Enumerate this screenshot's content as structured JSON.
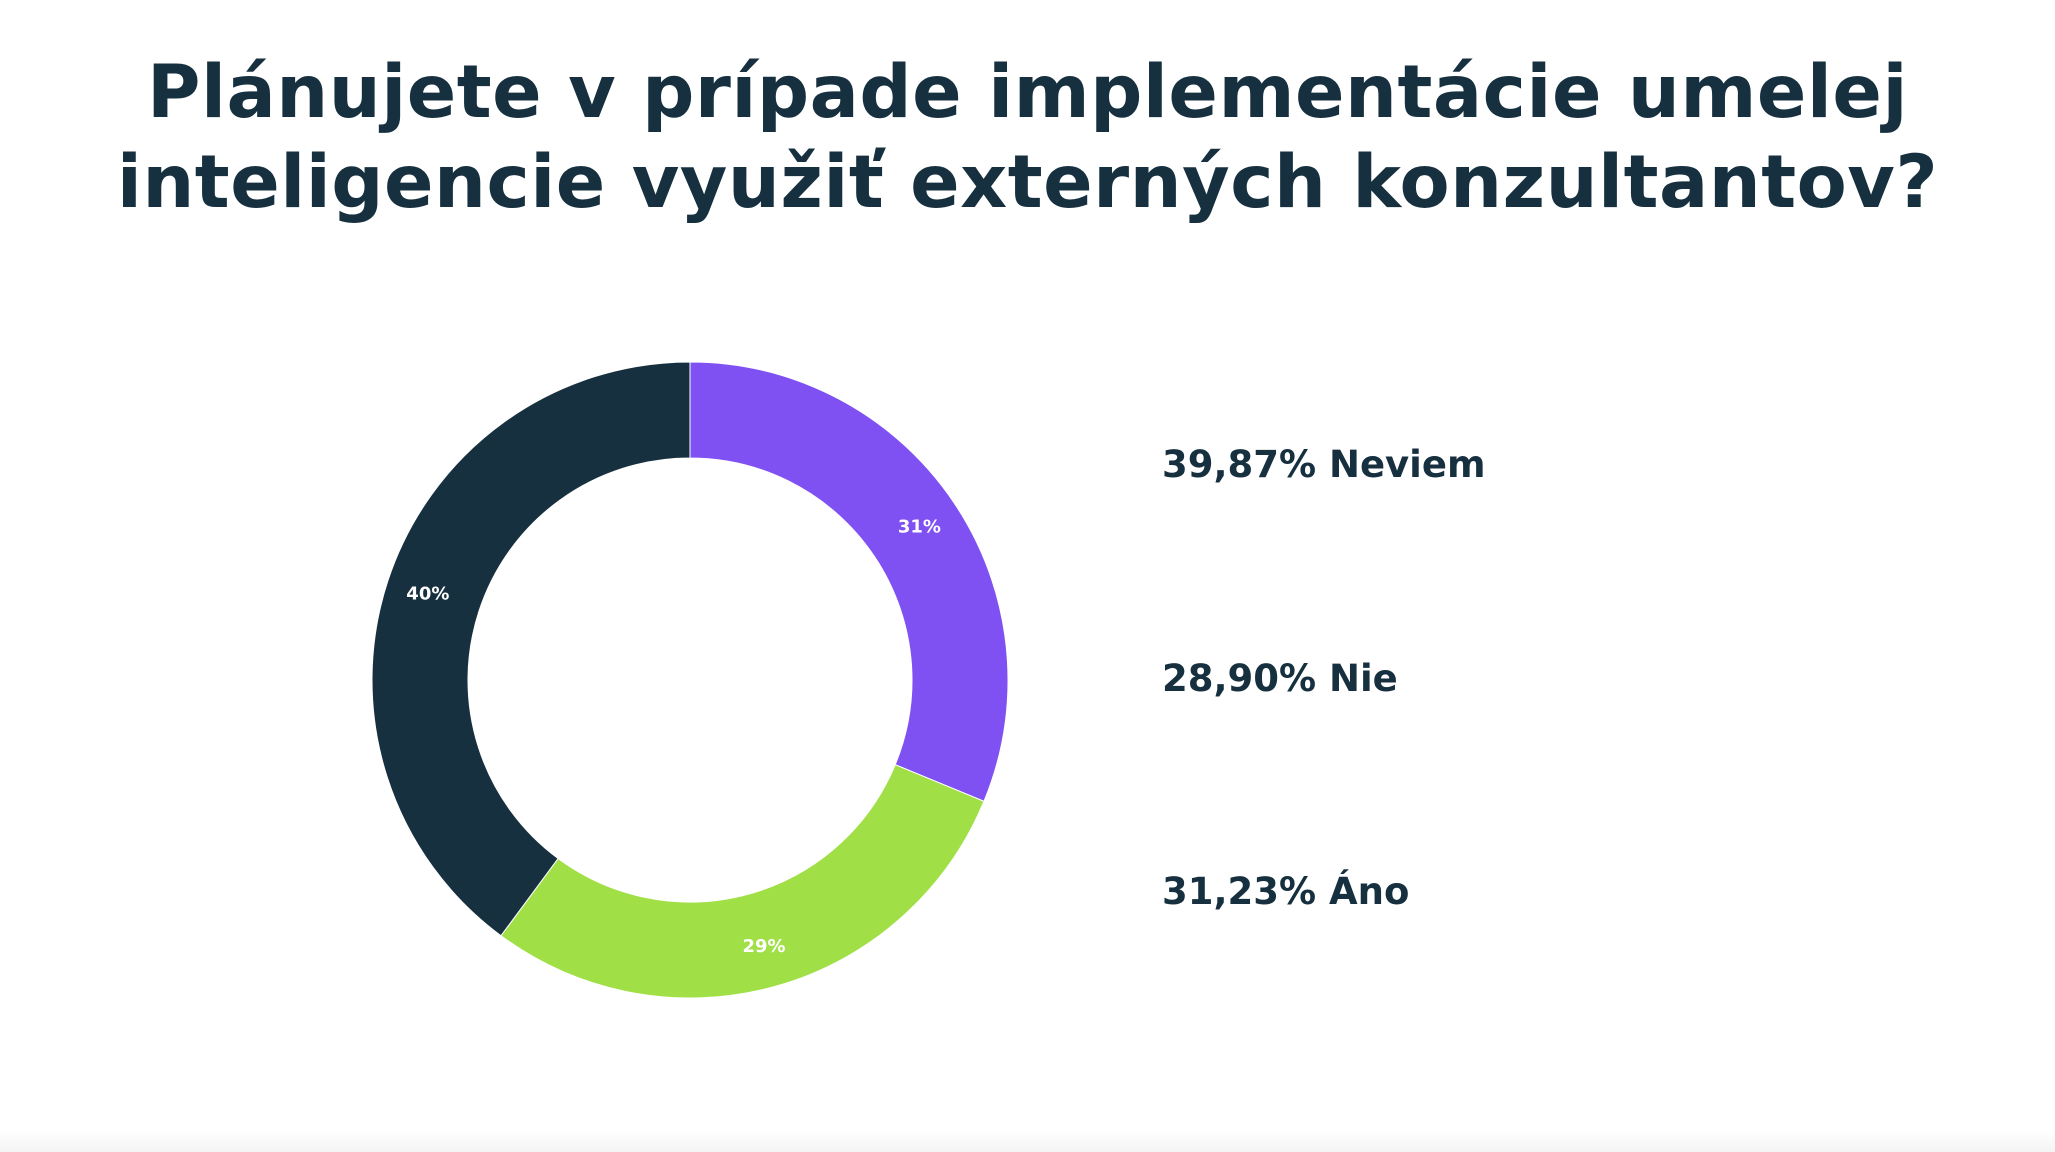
{
  "chart_data": {
    "type": "pie",
    "style": "donut",
    "title": "Plánujete v prípade implementácie umelej inteligencie využiť externých konzultantov?",
    "title_lines": [
      "Plánujete v prípade implementácie umelej",
      "inteligencie využiť externých konzultantov?"
    ],
    "slices": [
      {
        "name": "Áno",
        "value": 31.23,
        "label": "31%",
        "color": "#7f51f3"
      },
      {
        "name": "Nie",
        "value": 28.9,
        "label": "29%",
        "color": "#a1df46"
      },
      {
        "name": "Neviem",
        "value": 39.87,
        "label": "40%",
        "color": "#17303f"
      }
    ],
    "legend": [
      "39,87% Neviem",
      "28,90% Nie",
      "31,23% Áno"
    ]
  }
}
